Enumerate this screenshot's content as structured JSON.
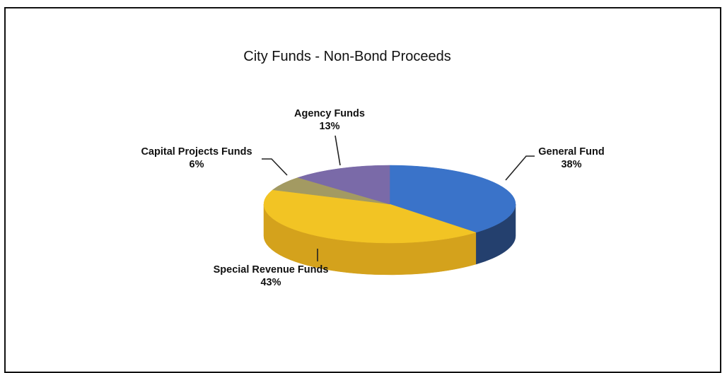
{
  "chart_data": {
    "type": "pie",
    "title": "City Funds - Non-Bond Proceeds",
    "three_d": true,
    "legend": "none",
    "slices": [
      {
        "label": "General Fund",
        "value": 38,
        "value_label": "38%",
        "color": "#3a73c9",
        "side_color": "#24406e"
      },
      {
        "label": "Special Revenue Funds",
        "value": 43,
        "value_label": "43%",
        "color": "#f2c424",
        "side_color": "#d4a21c"
      },
      {
        "label": "Capital Projects Funds",
        "value": 6,
        "value_label": "6%",
        "color": "#a39a62",
        "side_color": "#7d7645"
      },
      {
        "label": "Agency Funds",
        "value": 13,
        "value_label": "13%",
        "color": "#7a6aa8",
        "side_color": "#564a7c"
      }
    ]
  }
}
